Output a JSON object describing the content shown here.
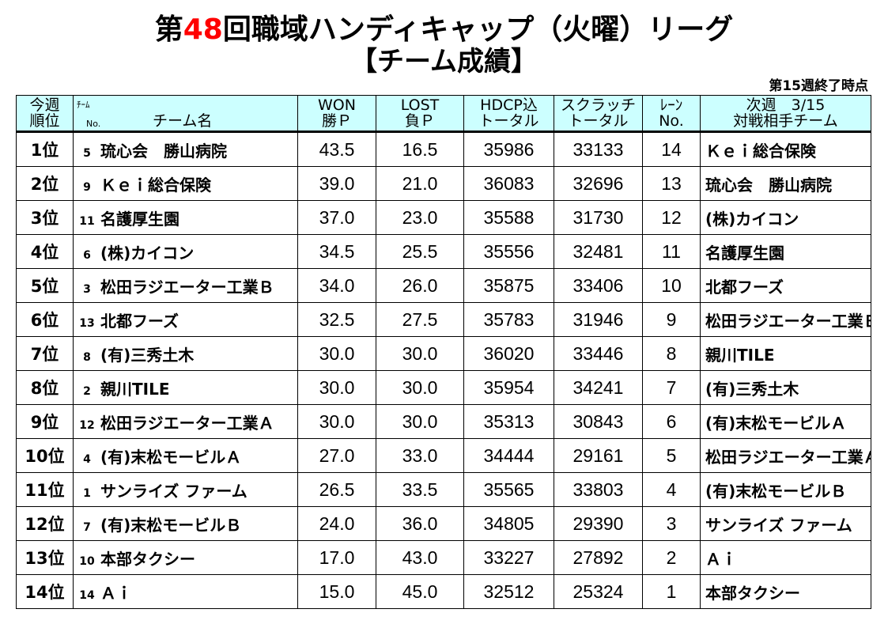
{
  "header": {
    "title_prefix": "第",
    "title_number": "48",
    "title_suffix": "回職域ハンディキャップ（火曜）リーグ",
    "subtitle": "【チーム成績】",
    "status": "第15週終了時点"
  },
  "columns": {
    "rank_line1": "今週",
    "rank_line2": "順位",
    "team_label_a": "ﾁｰﾑ",
    "team_label_b": "No.",
    "team_name": "チーム名",
    "won_line1": "WON",
    "won_line2": "勝Ｐ",
    "lost_line1": "LOST",
    "lost_line2": "負Ｐ",
    "hdcp_line1": "HDCP込",
    "hdcp_line2": "トータル",
    "scratch_line1": "スクラッチ",
    "scratch_line2": "トータル",
    "lane_line1": "ﾚｰﾝ",
    "lane_line2": "No.",
    "opp_line1": "次週　3/15",
    "opp_line2": "対戦相手チーム"
  },
  "rows": [
    {
      "rank": "1位",
      "no": "5",
      "team": "琉心会　勝山病院",
      "won": "43.5",
      "lost": "16.5",
      "hdcp": "35986",
      "scratch": "33133",
      "lane": "14",
      "opponent": "Ｋｅｉ総合保険"
    },
    {
      "rank": "2位",
      "no": "9",
      "team": "Ｋｅｉ総合保険",
      "won": "39.0",
      "lost": "21.0",
      "hdcp": "36083",
      "scratch": "32696",
      "lane": "13",
      "opponent": "琉心会　勝山病院"
    },
    {
      "rank": "3位",
      "no": "11",
      "team": "名護厚生園",
      "won": "37.0",
      "lost": "23.0",
      "hdcp": "35588",
      "scratch": "31730",
      "lane": "12",
      "opponent": "(株)カイコン"
    },
    {
      "rank": "4位",
      "no": "6",
      "team": "(株)カイコン",
      "won": "34.5",
      "lost": "25.5",
      "hdcp": "35556",
      "scratch": "32481",
      "lane": "11",
      "opponent": "名護厚生園"
    },
    {
      "rank": "5位",
      "no": "3",
      "team": "松田ラジエーター工業Ｂ",
      "won": "34.0",
      "lost": "26.0",
      "hdcp": "35875",
      "scratch": "33406",
      "lane": "10",
      "opponent": "北都フーズ"
    },
    {
      "rank": "6位",
      "no": "13",
      "team": "北都フーズ",
      "won": "32.5",
      "lost": "27.5",
      "hdcp": "35783",
      "scratch": "31946",
      "lane": "9",
      "opponent": "松田ラジエーター工業Ｂ"
    },
    {
      "rank": "7位",
      "no": "8",
      "team": "(有)三秀土木",
      "won": "30.0",
      "lost": "30.0",
      "hdcp": "36020",
      "scratch": "33446",
      "lane": "8",
      "opponent": "親川TILE"
    },
    {
      "rank": "8位",
      "no": "2",
      "team": "親川TILE",
      "won": "30.0",
      "lost": "30.0",
      "hdcp": "35954",
      "scratch": "34241",
      "lane": "7",
      "opponent": "(有)三秀土木"
    },
    {
      "rank": "9位",
      "no": "12",
      "team": "松田ラジエーター工業Ａ",
      "won": "30.0",
      "lost": "30.0",
      "hdcp": "35313",
      "scratch": "30843",
      "lane": "6",
      "opponent": "(有)末松モービルＡ"
    },
    {
      "rank": "10位",
      "no": "4",
      "team": "(有)末松モービルＡ",
      "won": "27.0",
      "lost": "33.0",
      "hdcp": "34444",
      "scratch": "29161",
      "lane": "5",
      "opponent": "松田ラジエーター工業Ａ"
    },
    {
      "rank": "11位",
      "no": "1",
      "team": "サンライズ ファーム",
      "won": "26.5",
      "lost": "33.5",
      "hdcp": "35565",
      "scratch": "33803",
      "lane": "4",
      "opponent": "(有)末松モービルＢ"
    },
    {
      "rank": "12位",
      "no": "7",
      "team": "(有)末松モービルＢ",
      "won": "24.0",
      "lost": "36.0",
      "hdcp": "34805",
      "scratch": "29390",
      "lane": "3",
      "opponent": "サンライズ ファーム"
    },
    {
      "rank": "13位",
      "no": "10",
      "team": "本部タクシー",
      "won": "17.0",
      "lost": "43.0",
      "hdcp": "33227",
      "scratch": "27892",
      "lane": "2",
      "opponent": "Ａｉ"
    },
    {
      "rank": "14位",
      "no": "14",
      "team": "Ａｉ",
      "won": "15.0",
      "lost": "45.0",
      "hdcp": "32512",
      "scratch": "25324",
      "lane": "1",
      "opponent": "本部タクシー"
    }
  ],
  "colors": {
    "header_bg": "#ccffff",
    "title_number": "#ff0000"
  }
}
